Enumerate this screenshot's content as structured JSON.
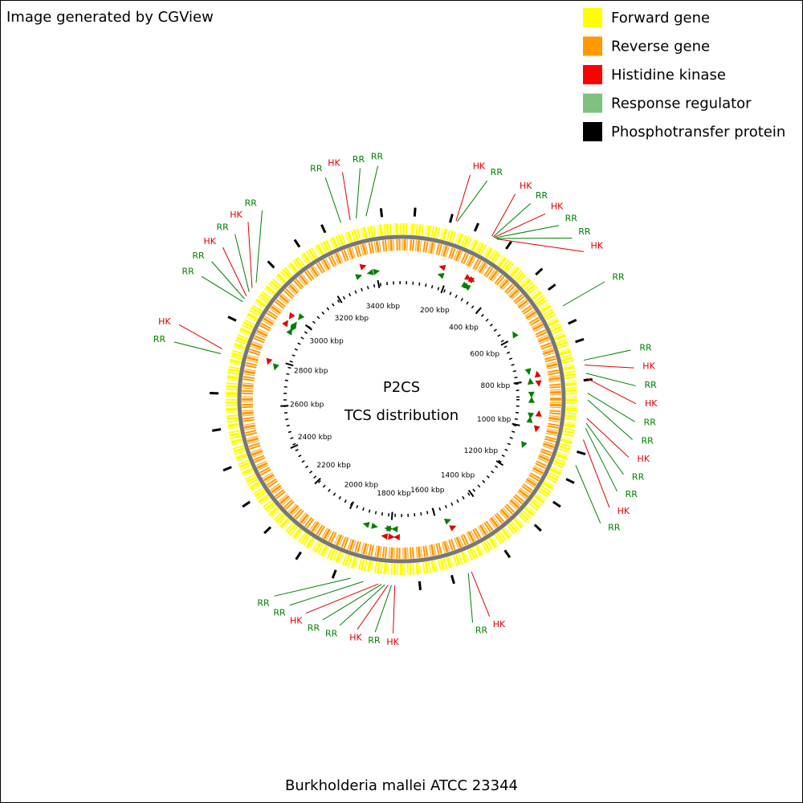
{
  "chart_data": {
    "type": "circular-genome",
    "credit": "Image generated by CGView",
    "title": "P2CS",
    "subtitle": "TCS distribution",
    "caption": "Burkholderia mallei ATCC 23344",
    "xlim": [
      0,
      3510
    ],
    "xticks": [
      {
        "value": 200,
        "label": "200 kbp"
      },
      {
        "value": 400,
        "label": "400 kbp"
      },
      {
        "value": 600,
        "label": "600 kbp"
      },
      {
        "value": 800,
        "label": "800 kbp"
      },
      {
        "value": 1000,
        "label": "1000 kbp"
      },
      {
        "value": 1200,
        "label": "1200 kbp"
      },
      {
        "value": 1400,
        "label": "1400 kbp"
      },
      {
        "value": 1600,
        "label": "1600 kbp"
      },
      {
        "value": 1800,
        "label": "1800 kbp"
      },
      {
        "value": 2000,
        "label": "2000 kbp"
      },
      {
        "value": 2200,
        "label": "2200 kbp"
      },
      {
        "value": 2400,
        "label": "2400 kbp"
      },
      {
        "value": 2600,
        "label": "2600 kbp"
      },
      {
        "value": 2800,
        "label": "2800 kbp"
      },
      {
        "value": 3000,
        "label": "3000 kbp"
      },
      {
        "value": 3200,
        "label": "3200 kbp"
      },
      {
        "value": 3400,
        "label": "3400 kbp"
      }
    ],
    "series": [
      {
        "name": "Forward gene",
        "color": "#ffff00"
      },
      {
        "name": "Reverse gene",
        "color": "#ff9900"
      },
      {
        "name": "Histidine kinase",
        "color": "#ff0000",
        "mark_color": "#e00000",
        "marker_label": "HK",
        "values": [
          166,
          283,
          290,
          300,
          775,
          815,
          935,
          1000,
          1540,
          1775,
          1795,
          1825,
          2785,
          2960,
          2990,
          3354
        ]
      },
      {
        "name": "Response regulator",
        "color": "#80c080",
        "mark_color": "#008000",
        "marker_label": "RR",
        "values": [
          170,
          287,
          293,
          297,
          585,
          760,
          800,
          860,
          880,
          950,
          965,
          1080,
          1550,
          1785,
          1805,
          1815,
          1870,
          1910,
          2770,
          2940,
          2950,
          2975,
          3010,
          3325,
          3373,
          3403
        ]
      },
      {
        "name": "Phosphotransfer protein",
        "color": "#000000",
        "values": [
          40,
          150,
          230,
          340,
          460,
          520,
          640,
          700,
          820,
          1040,
          1130,
          1210,
          1300,
          1420,
          1600,
          1700,
          1960,
          2080,
          2200,
          2300,
          2420,
          2540,
          2650,
          2880,
          3080,
          3180,
          3270,
          3450
        ]
      }
    ]
  }
}
